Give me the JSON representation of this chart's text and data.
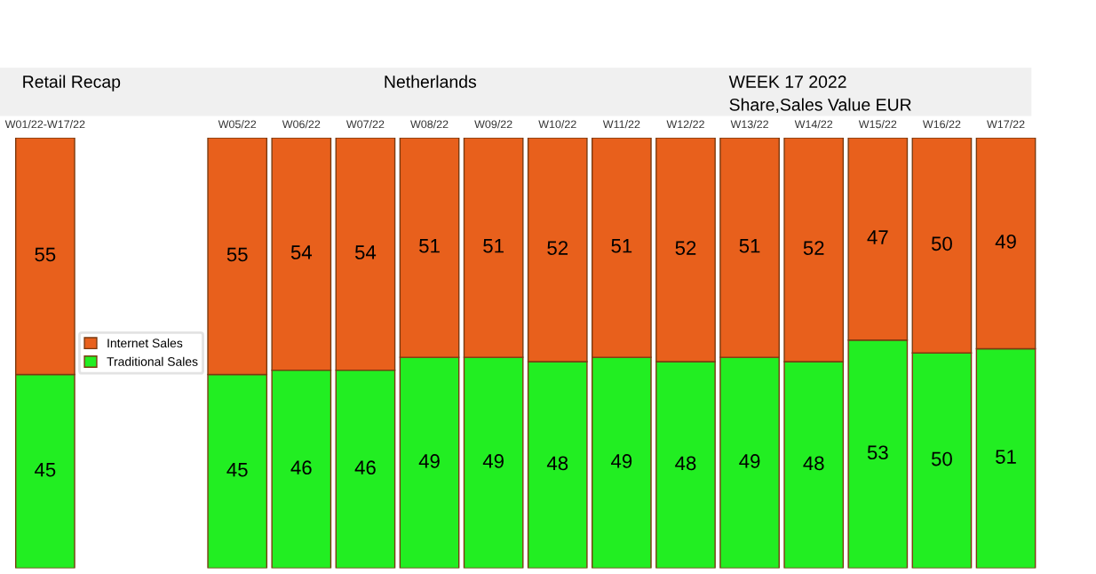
{
  "chart_data": {
    "type": "bar",
    "stacked": true,
    "title": "Retail Recap",
    "annotations": [
      "Netherlands",
      "WEEK 17 2022",
      "Share,Sales Value EUR"
    ],
    "categories": [
      "W01/22-W17/22",
      null,
      null,
      "W05/22",
      "W06/22",
      "W07/22",
      "W08/22",
      "W09/22",
      "W10/22",
      "W11/22",
      "W12/22",
      "W13/22",
      "W14/22",
      "W15/22",
      "W16/22",
      "W17/22"
    ],
    "series": [
      {
        "name": "Traditional Sales",
        "color": "#22ee22",
        "values": [
          45,
          null,
          null,
          45,
          46,
          46,
          49,
          49,
          48,
          49,
          48,
          49,
          48,
          53,
          50,
          51
        ]
      },
      {
        "name": "Internet Sales",
        "color": "#e8601c",
        "values": [
          55,
          null,
          null,
          55,
          54,
          54,
          51,
          51,
          52,
          51,
          52,
          51,
          52,
          47,
          50,
          49
        ]
      }
    ],
    "data_labels": true,
    "legend": "left"
  }
}
